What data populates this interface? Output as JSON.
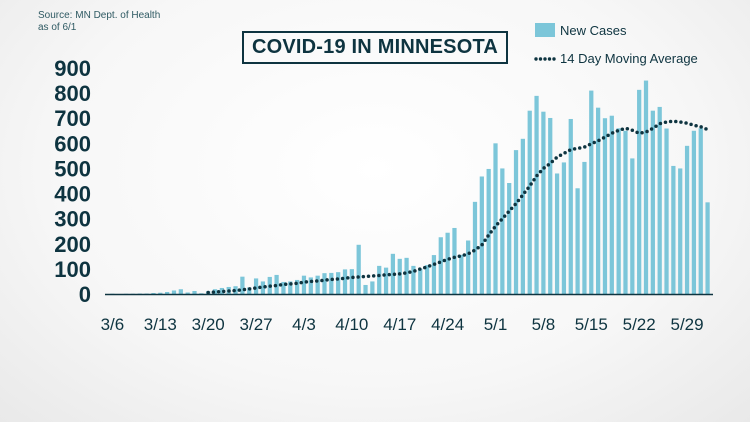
{
  "source_note": {
    "line1": "Source: MN Dept. of Health",
    "line2": "as of 6/1"
  },
  "title": "COVID-19 IN MINNESOTA",
  "colors": {
    "bar": "#7cc6d9",
    "average": "#0e3440",
    "text": "#0e3440",
    "axis": "#0e3440"
  },
  "chart_data": {
    "type": "bar",
    "title": "COVID-19 IN MINNESOTA",
    "xlabel": "",
    "ylabel": "",
    "ylim": [
      0,
      900
    ],
    "yticks": [
      0,
      100,
      200,
      300,
      400,
      500,
      600,
      700,
      800,
      900
    ],
    "xtick_labels": [
      "3/6",
      "3/13",
      "3/20",
      "3/27",
      "4/3",
      "4/10",
      "4/17",
      "4/24",
      "5/1",
      "5/8",
      "5/15",
      "5/22",
      "5/29"
    ],
    "legend_position": "top-right",
    "grid": false,
    "x": [
      "3/6",
      "3/7",
      "3/8",
      "3/9",
      "3/10",
      "3/11",
      "3/12",
      "3/13",
      "3/14",
      "3/15",
      "3/16",
      "3/17",
      "3/18",
      "3/19",
      "3/20",
      "3/21",
      "3/22",
      "3/23",
      "3/24",
      "3/25",
      "3/26",
      "3/27",
      "3/28",
      "3/29",
      "3/30",
      "3/31",
      "4/1",
      "4/2",
      "4/3",
      "4/4",
      "4/5",
      "4/6",
      "4/7",
      "4/8",
      "4/9",
      "4/10",
      "4/11",
      "4/12",
      "4/13",
      "4/14",
      "4/15",
      "4/16",
      "4/17",
      "4/18",
      "4/19",
      "4/20",
      "4/21",
      "4/22",
      "4/23",
      "4/24",
      "4/25",
      "4/26",
      "4/27",
      "4/28",
      "4/29",
      "4/30",
      "5/1",
      "5/2",
      "5/3",
      "5/4",
      "5/5",
      "5/6",
      "5/7",
      "5/8",
      "5/9",
      "5/10",
      "5/11",
      "5/12",
      "5/13",
      "5/14",
      "5/15",
      "5/16",
      "5/17",
      "5/18",
      "5/19",
      "5/20",
      "5/21",
      "5/22",
      "5/23",
      "5/24",
      "5/25",
      "5/26",
      "5/27",
      "5/28",
      "5/29",
      "5/30",
      "5/31",
      "6/1"
    ],
    "series": [
      {
        "name": "New Cases",
        "type": "bar",
        "values": [
          1,
          0,
          1,
          1,
          2,
          2,
          4,
          5,
          8,
          14,
          19,
          6,
          12,
          3,
          11,
          19,
          24,
          28,
          31,
          69,
          26,
          62,
          50,
          68,
          76,
          48,
          50,
          56,
          73,
          66,
          73,
          83,
          84,
          87,
          98,
          99,
          196,
          36,
          50,
          112,
          105,
          160,
          140,
          144,
          112,
          101,
          115,
          155,
          226,
          244,
          263,
          156,
          213,
          367,
          468,
          498,
          600,
          500,
          442,
          573,
          618,
          730,
          789,
          726,
          701,
          480,
          524,
          697,
          421,
          526,
          810,
          742,
          700,
          710,
          660,
          650,
          540,
          813,
          850,
          730,
          745,
          659,
          510,
          500,
          590,
          650,
          660,
          365
        ]
      },
      {
        "name": "14 Day Moving Average",
        "type": "line",
        "values": [
          0,
          0,
          0,
          0,
          1,
          1,
          1,
          2,
          2,
          3,
          4,
          4,
          5,
          5,
          6,
          8,
          10,
          12,
          14,
          17,
          20,
          24,
          28,
          31,
          34,
          38,
          40,
          43,
          47,
          50,
          52,
          55,
          58,
          60,
          63,
          66,
          68,
          70,
          72,
          74,
          76,
          78,
          80,
          84,
          90,
          100,
          108,
          118,
          128,
          138,
          146,
          152,
          160,
          175,
          195,
          235,
          270,
          300,
          330,
          360,
          395,
          430,
          470,
          500,
          520,
          545,
          560,
          575,
          580,
          585,
          598,
          610,
          625,
          640,
          652,
          660,
          652,
          640,
          645,
          660,
          678,
          685,
          688,
          685,
          680,
          672,
          666,
          655
        ]
      }
    ]
  }
}
